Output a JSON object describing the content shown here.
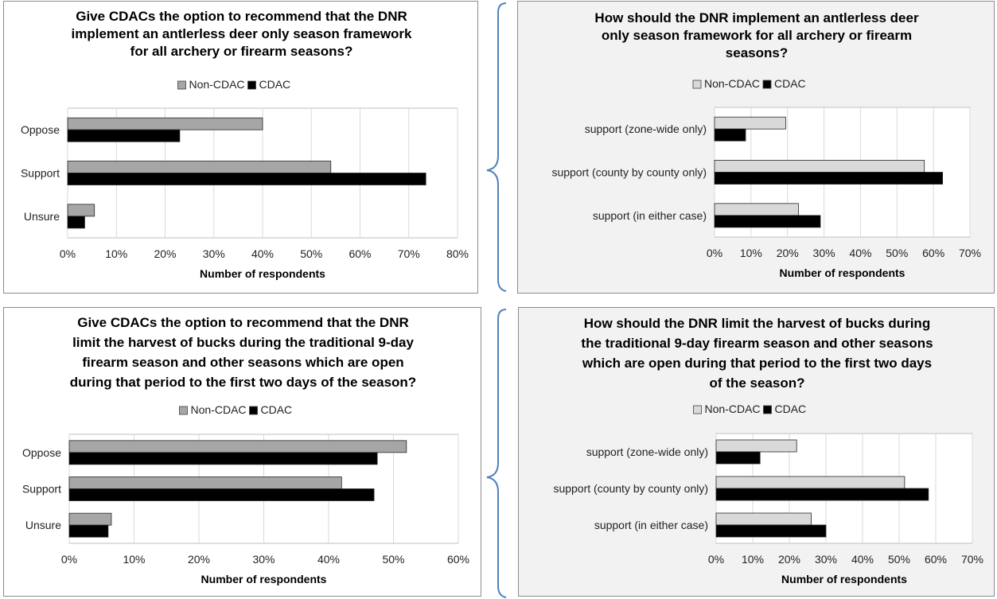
{
  "chart_data": [
    {
      "type": "bar",
      "orientation": "horizontal",
      "title": "Give CDACs the option to recommend that the DNR implement an antlerless deer only season framework for all archery or firearm seasons?",
      "title_lines": [
        "Give CDACs the option to recommend that the DNR",
        "implement an antlerless deer only season framework",
        "for all archery or firearm seasons?"
      ],
      "categories": [
        "Oppose",
        "Support",
        "Unsure"
      ],
      "series": [
        {
          "name": "Non-CDAC",
          "values": [
            40,
            54,
            5.5
          ]
        },
        {
          "name": "CDAC",
          "values": [
            23,
            73.5,
            3.5
          ]
        }
      ],
      "xlabel": "Number of respondents",
      "xlim": [
        0,
        80
      ],
      "ticks": [
        "0%",
        "10%",
        "20%",
        "30%",
        "40%",
        "50%",
        "60%",
        "70%",
        "80%"
      ],
      "legend": "top",
      "grid": true
    },
    {
      "type": "bar",
      "orientation": "horizontal",
      "title": "How should the DNR implement an antlerless deer only season framework for all archery or firearm seasons?",
      "title_lines": [
        "How should the DNR implement an antlerless deer",
        "only season framework for all archery or firearm",
        "seasons?"
      ],
      "categories": [
        "support (zone-wide only)",
        "support (county by county only)",
        "support (in either case)"
      ],
      "series": [
        {
          "name": "Non-CDAC",
          "values": [
            19.5,
            57.5,
            23
          ]
        },
        {
          "name": "CDAC",
          "values": [
            8.5,
            62.5,
            29
          ]
        }
      ],
      "xlabel": "Number of respondents",
      "xlim": [
        0,
        70
      ],
      "ticks": [
        "0%",
        "10%",
        "20%",
        "30%",
        "40%",
        "50%",
        "60%",
        "70%"
      ],
      "legend": "top",
      "grid": true
    },
    {
      "type": "bar",
      "orientation": "horizontal",
      "title": "Give CDACs the option to recommend that the DNR limit the harvest of bucks during the traditional 9-day firearm season and other seasons which are open during that period to the first two days of the season?",
      "title_lines": [
        "Give CDACs the option to recommend that the DNR",
        "limit the harvest of bucks during the traditional 9-day",
        "firearm season and other seasons which are open",
        "during that period to the first two days of the season?"
      ],
      "categories": [
        "Oppose",
        "Support",
        "Unsure"
      ],
      "series": [
        {
          "name": "Non-CDAC",
          "values": [
            52,
            42,
            6.5
          ]
        },
        {
          "name": "CDAC",
          "values": [
            47.5,
            47,
            6
          ]
        }
      ],
      "xlabel": "Number of respondents",
      "xlim": [
        0,
        60
      ],
      "ticks": [
        "0%",
        "10%",
        "20%",
        "30%",
        "40%",
        "50%",
        "60%"
      ],
      "legend": "top",
      "grid": true
    },
    {
      "type": "bar",
      "orientation": "horizontal",
      "title": "How should the DNR limit the harvest of bucks during the traditional 9-day firearm season and other seasons which are open during that period to the first two days of the season?",
      "title_lines": [
        "How should the DNR limit the harvest of bucks during",
        "the traditional 9-day firearm season and other seasons",
        "which are open during that period to the first two days",
        "of the season?"
      ],
      "categories": [
        "support (zone-wide only)",
        "support (county by county only)",
        "support (in either case)"
      ],
      "series": [
        {
          "name": "Non-CDAC",
          "values": [
            22,
            51.5,
            26
          ]
        },
        {
          "name": "CDAC",
          "values": [
            12,
            58,
            30
          ]
        }
      ],
      "xlabel": "Number of respondents",
      "xlim": [
        0,
        70
      ],
      "ticks": [
        "0%",
        "10%",
        "20%",
        "30%",
        "40%",
        "50%",
        "60%",
        "70%"
      ],
      "legend": "top",
      "grid": true
    }
  ],
  "colors": {
    "non_cdac_left": "#a6a6a6",
    "non_cdac_right": "#d9d9d9",
    "cdac": "#000000",
    "grid": "#d9d9d9",
    "brace": "#4f81bd",
    "panel_shaded": "#f2f2f2"
  }
}
